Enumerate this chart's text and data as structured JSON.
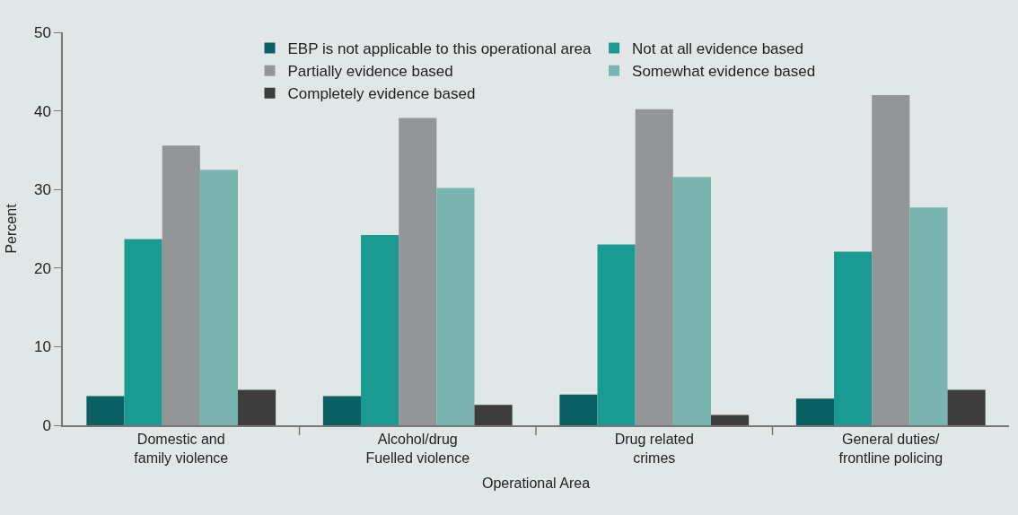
{
  "chart_data": {
    "type": "bar",
    "xlabel": "Operational Area",
    "ylabel": "Percent",
    "categories": [
      "Domestic and\nfamily violence",
      "Alcohol/drug\nFuelled violence",
      "Drug related\ncrimes",
      "General duties/\nfrontline policing"
    ],
    "series": [
      {
        "name": "EBP is not applicable to this operational area",
        "color": "#0b6063",
        "values": [
          3.7,
          3.7,
          3.9,
          3.4
        ]
      },
      {
        "name": "Not at all evidence based",
        "color": "#1b9a91",
        "values": [
          23.7,
          24.2,
          23.0,
          22.1
        ]
      },
      {
        "name": "Partially evidence based",
        "color": "#939598",
        "values": [
          35.6,
          39.1,
          40.2,
          42.0
        ]
      },
      {
        "name": "Somewhat evidence based",
        "color": "#79b4af",
        "values": [
          32.5,
          30.2,
          31.6,
          27.7
        ]
      },
      {
        "name": "Completely evidence based",
        "color": "#3d3d3d",
        "values": [
          4.5,
          2.6,
          1.3,
          4.5
        ]
      }
    ],
    "ylim": [
      0,
      50
    ],
    "yticks": [
      0,
      10,
      20,
      30,
      40,
      50
    ],
    "grid": false,
    "legend": "top"
  }
}
